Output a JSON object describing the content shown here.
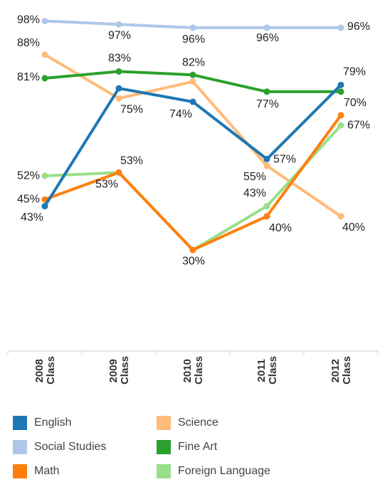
{
  "chart_data": {
    "type": "line",
    "categories": [
      "2008 Class",
      "2009 Class",
      "2010 Class",
      "2011 Class",
      "2012 Class"
    ],
    "ylim": [
      0,
      100
    ],
    "series": [
      {
        "name": "English",
        "color": "#1f77b4",
        "values": [
          43,
          78,
          74,
          57,
          79
        ],
        "value_labels": [
          "43%",
          null,
          "74%",
          "57%",
          "79%"
        ]
      },
      {
        "name": "Science",
        "color": "#ffbb78",
        "values": [
          88,
          75,
          80,
          55,
          40
        ],
        "value_labels": [
          "88%",
          "75%",
          null,
          "55%",
          "40%"
        ]
      },
      {
        "name": "Social Studies",
        "color": "#aec7e8",
        "values": [
          98,
          97,
          96,
          96,
          96
        ],
        "value_labels": [
          "98%",
          "97%",
          "96%",
          "96%",
          "96%"
        ]
      },
      {
        "name": "Fine Art",
        "color": "#2ca02c",
        "values": [
          81,
          83,
          82,
          77,
          77
        ],
        "value_labels": [
          "81%",
          "83%",
          "82%",
          "77%",
          null
        ]
      },
      {
        "name": "Math",
        "color": "#ff7f0e",
        "values": [
          45,
          53,
          30,
          40,
          70
        ],
        "value_labels": [
          "45%",
          "53%",
          "30%",
          "40%",
          "70%"
        ]
      },
      {
        "name": "Foreign Language",
        "color": "#98df8a",
        "values": [
          52,
          53,
          30,
          43,
          67
        ],
        "value_labels": [
          "52%",
          "53%",
          null,
          "43%",
          "67%"
        ]
      }
    ]
  }
}
